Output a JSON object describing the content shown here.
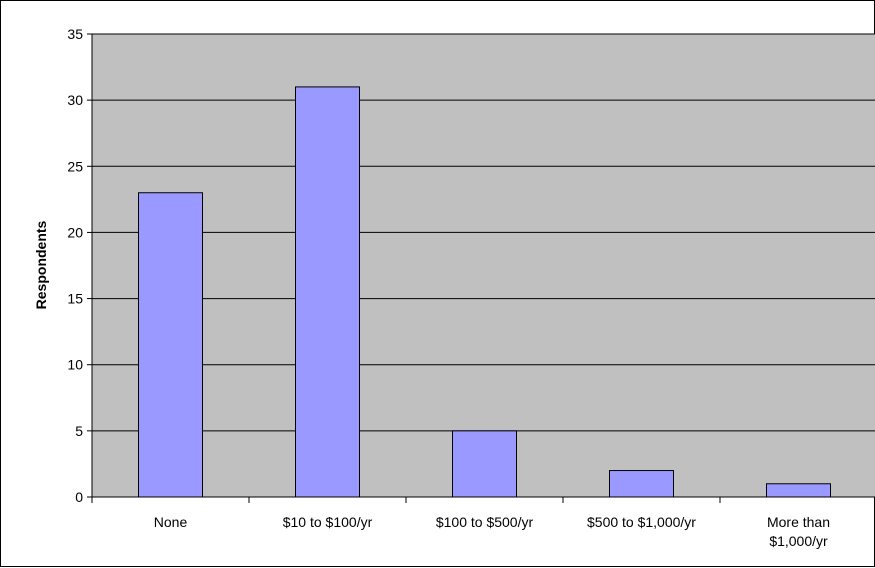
{
  "chart_data": {
    "type": "bar",
    "title": "",
    "xlabel": "",
    "ylabel": "Respondents",
    "categories": [
      [
        "None"
      ],
      [
        "$10 to $100/yr"
      ],
      [
        "$100 to $500/yr"
      ],
      [
        "$500 to $1,000/yr"
      ],
      [
        "More than",
        "$1,000/yr"
      ]
    ],
    "values": [
      23,
      31,
      5,
      2,
      1
    ],
    "ylim": [
      0,
      35
    ],
    "yticks": [
      "0",
      "5",
      "10",
      "15",
      "20",
      "25",
      "30",
      "35"
    ],
    "grid": true,
    "legend": "none",
    "colors": {
      "plot_background": "#c0c0c0",
      "bar_fill": "#9999ff",
      "bar_stroke": "#000000",
      "gridline": "#000000"
    }
  }
}
